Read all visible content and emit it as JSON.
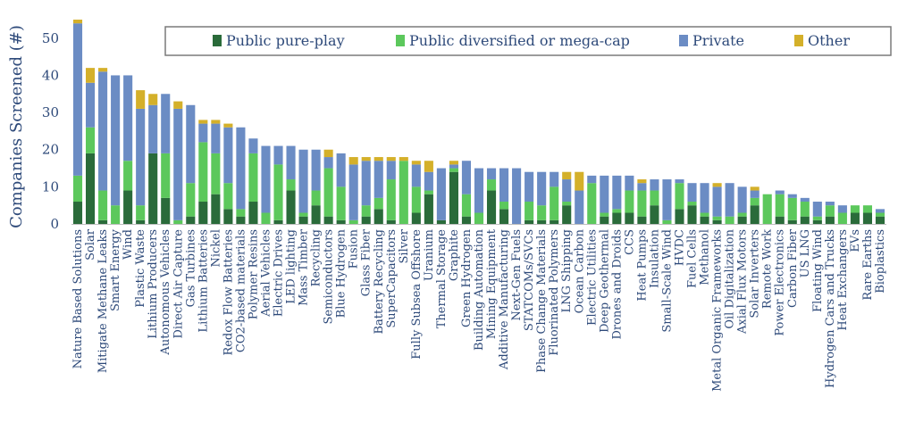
{
  "chart_data": {
    "type": "bar",
    "stacked": true,
    "title": "",
    "xlabel": "",
    "ylabel": "Companies Screened (#)",
    "ylim": [
      0,
      55
    ],
    "yticks": [
      0,
      10,
      20,
      30,
      40,
      50
    ],
    "grid": false,
    "legend": {
      "placement": "top-right",
      "boxed": true
    },
    "categories": [
      "Nature Based Solutions",
      "Solar",
      "Mitigate Methane Leaks",
      "Smart Energy",
      "Wind",
      "Plastic Waste",
      "Lithium Producers",
      "Autonomous Vehicles",
      "Direct Air Capture",
      "Gas Turbines",
      "Lithium Batteries",
      "Nickel",
      "Redox Flow Batteries",
      "CO2-based materials",
      "Polymer Resins",
      "Aerial Vehicles",
      "Electric Drives",
      "LED lighting",
      "Mass Timber",
      "Recycling",
      "Semiconductors",
      "Blue Hydrogen",
      "Fusion",
      "Glass Fiber",
      "Battery Recycling",
      "SuperCapacitors",
      "Silver",
      "Fully Subsea Offshore",
      "Uranium",
      "Thermal Storage",
      "Graphite",
      "Green Hydrogen",
      "Building Automation",
      "Mining Equipment",
      "Additive Manufacturing",
      "Next-Gen Fuels",
      "STATCOMs/SVCs",
      "Phase Change Materials",
      "Fluorinated Polymers",
      "LNG Shipping",
      "Ocean Carbon",
      "Electric Utilities",
      "Deep Geothermal",
      "Drones and Droids",
      "CCS",
      "Heat Pumps",
      "Insulation",
      "Small-Scale Wind",
      "HVDC",
      "Fuel Cells",
      "Methanol",
      "Metal Organic Frameworks",
      "Oil Digitalization",
      "Axial Flux Motors",
      "Solar Inverters",
      "Remote Work",
      "Power Electronics",
      "Carbon Fiber",
      "US LNG",
      "Floating Wind",
      "Hydrogen Cars and Trucks",
      "Heat Exchangers",
      "EVs",
      "Rare Earths",
      "Bioplastics"
    ],
    "series": [
      {
        "name": "Public pure-play",
        "color": "#2a6b3a",
        "values": [
          6,
          19,
          1,
          0,
          9,
          1,
          19,
          7,
          0,
          2,
          6,
          8,
          4,
          2,
          6,
          0,
          1,
          9,
          2,
          5,
          2,
          1,
          0,
          2,
          4,
          1,
          0,
          3,
          8,
          1,
          14,
          2,
          0,
          9,
          4,
          0,
          1,
          1,
          1,
          5,
          0,
          0,
          2,
          3,
          3,
          2,
          5,
          0,
          4,
          5,
          2,
          1,
          0,
          2,
          5,
          0,
          2,
          1,
          2,
          1,
          2,
          0,
          3,
          3,
          2
        ]
      },
      {
        "name": "Public diversified or mega-cap",
        "color": "#5cc85c",
        "values": [
          7,
          7,
          8,
          5,
          8,
          4,
          0,
          12,
          1,
          9,
          16,
          11,
          7,
          2,
          13,
          3,
          15,
          3,
          1,
          4,
          13,
          9,
          1,
          3,
          3,
          11,
          17,
          7,
          1,
          0,
          1,
          6,
          3,
          3,
          2,
          0,
          5,
          4,
          9,
          1,
          0,
          11,
          1,
          1,
          6,
          7,
          4,
          1,
          7,
          1,
          1,
          1,
          2,
          1,
          2,
          8,
          6,
          6,
          4,
          1,
          3,
          3,
          2,
          2,
          1
        ]
      },
      {
        "name": "Private",
        "color": "#6b8cc4",
        "values": [
          41,
          12,
          32,
          35,
          23,
          26,
          13,
          16,
          30,
          21,
          5,
          8,
          15,
          22,
          4,
          18,
          5,
          9,
          17,
          11,
          3,
          9,
          15,
          12,
          10,
          5,
          0,
          6,
          5,
          14,
          1,
          9,
          12,
          3,
          9,
          15,
          8,
          9,
          4,
          6,
          9,
          2,
          10,
          9,
          4,
          2,
          3,
          11,
          1,
          5,
          8,
          8,
          9,
          7,
          2,
          0,
          1,
          1,
          1,
          4,
          1,
          2,
          0,
          0,
          1
        ]
      },
      {
        "name": "Other",
        "color": "#d4b02a",
        "values": [
          1,
          4,
          1,
          0,
          0,
          5,
          3,
          0,
          2,
          0,
          1,
          1,
          1,
          0,
          0,
          0,
          0,
          0,
          0,
          0,
          2,
          0,
          2,
          1,
          1,
          1,
          1,
          1,
          3,
          0,
          1,
          0,
          0,
          0,
          0,
          0,
          0,
          0,
          0,
          2,
          5,
          0,
          0,
          0,
          0,
          1,
          0,
          0,
          0,
          0,
          0,
          1,
          0,
          0,
          1,
          0,
          0,
          0,
          0,
          0,
          0,
          0,
          0,
          0,
          0
        ]
      }
    ]
  }
}
